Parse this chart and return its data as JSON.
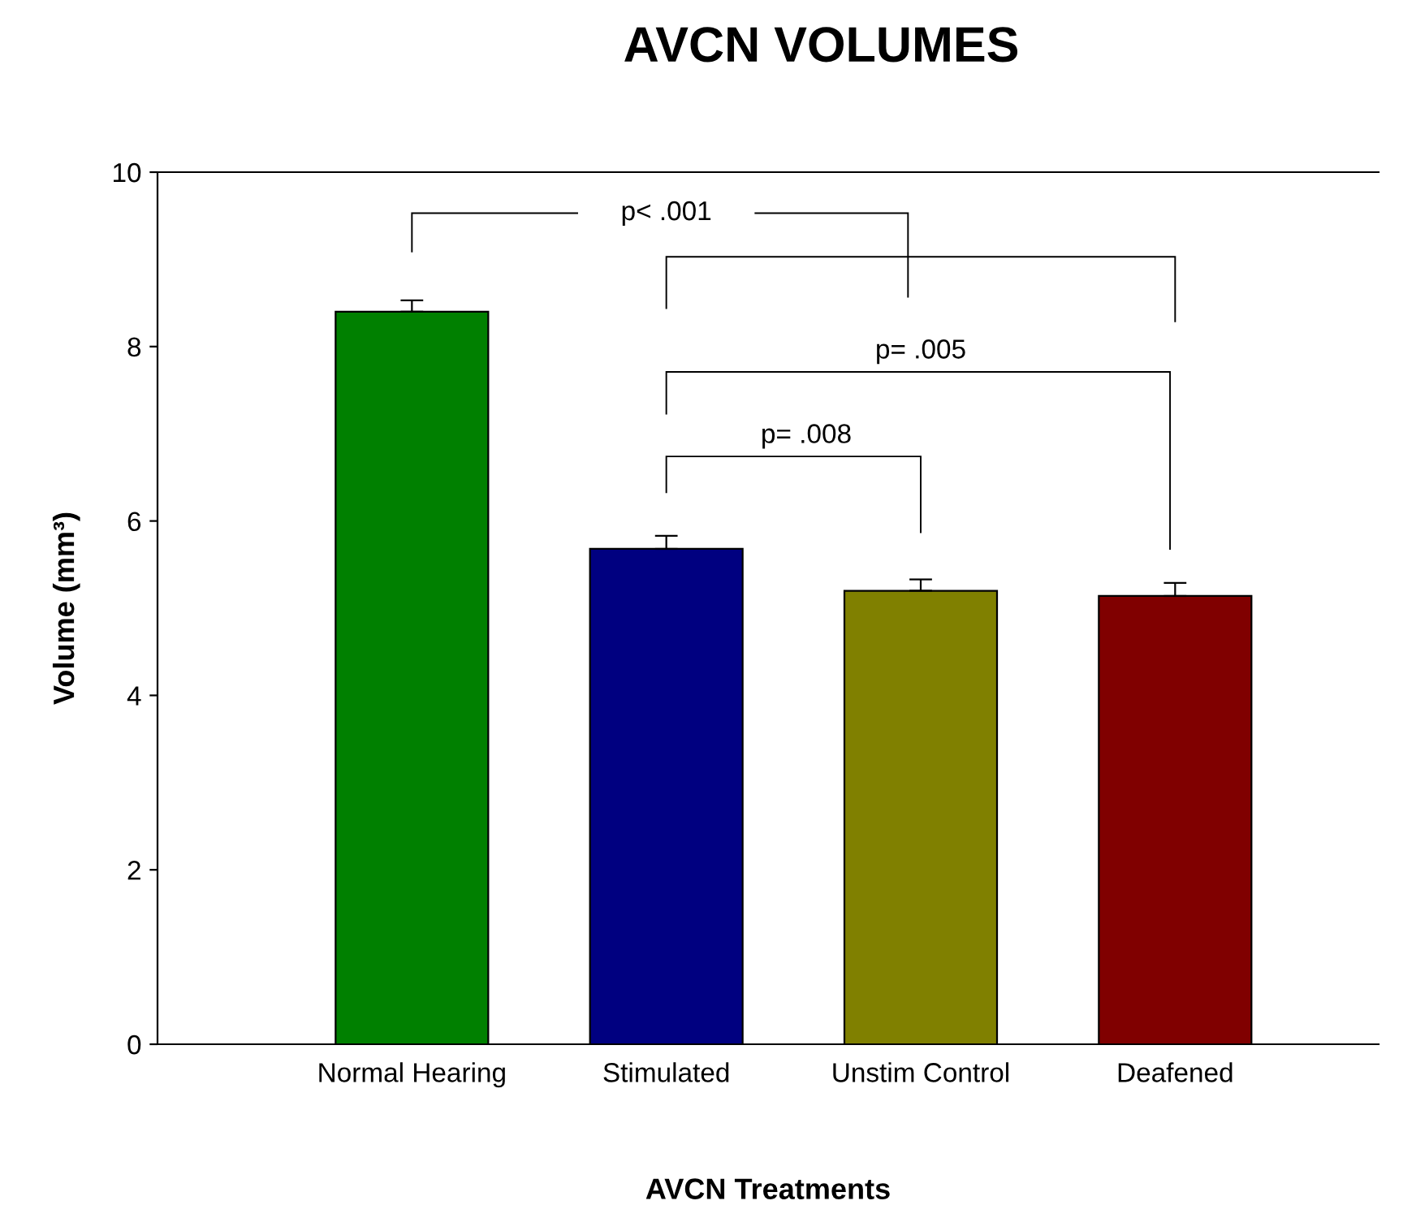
{
  "chart_data": {
    "type": "bar",
    "title": "AVCN VOLUMES",
    "xlabel": "AVCN Treatments",
    "ylabel": "Volume (mm³)",
    "categories": [
      "Normal Hearing",
      "Stimulated",
      "Unstim Control",
      "Deafened"
    ],
    "values": [
      8.4,
      5.68,
      5.2,
      5.14
    ],
    "errors": [
      0.13,
      0.15,
      0.13,
      0.15
    ],
    "colors": [
      "#008000",
      "#000080",
      "#808000",
      "#800000"
    ],
    "ylim": [
      0,
      10
    ],
    "yticks": [
      0,
      2,
      4,
      6,
      8,
      10
    ],
    "grid": false,
    "legend": false,
    "annotations": [
      "p< .001",
      "p= .005",
      "p= .008"
    ]
  }
}
